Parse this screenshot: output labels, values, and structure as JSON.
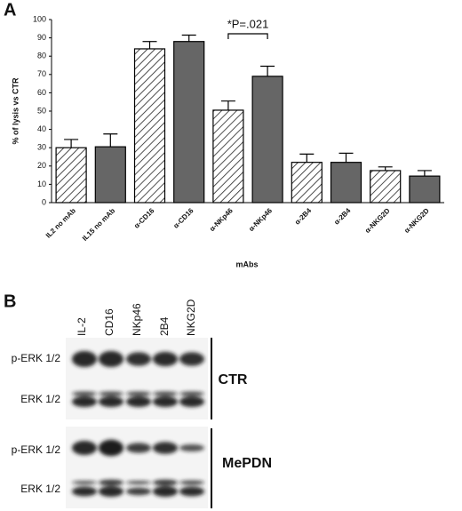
{
  "panel_labels": [
    "A",
    "B"
  ],
  "chart_data": {
    "type": "bar",
    "y_label": "% of lysis vs CTR",
    "x_label": "mAbs",
    "categories": [
      "IL2 no mAb",
      "IL15 no mAb",
      "α-CD16",
      "α-CD16",
      "α-NKp46",
      "α-NKp46",
      "α-2B4",
      "α-2B4",
      "α-NKG2D",
      "α-NKG2D"
    ],
    "values": [
      30,
      30.5,
      84,
      88,
      50.5,
      69,
      22,
      22,
      17.5,
      14.5
    ],
    "errors": [
      4.5,
      7,
      4,
      3.5,
      5,
      5.5,
      4.5,
      5,
      2,
      3
    ],
    "patterns": [
      "hatch",
      "solid",
      "hatch",
      "solid",
      "hatch",
      "solid",
      "hatch",
      "solid",
      "hatch",
      "solid"
    ],
    "color": "#666666",
    "annotation": "*P=.021",
    "ylim": [
      0,
      100
    ],
    "yticks": [
      0,
      10,
      20,
      30,
      40,
      50,
      60,
      70,
      80,
      90,
      100
    ]
  },
  "blot": {
    "lanes": [
      "IL-2",
      "CD16",
      "NKp46",
      "2B4",
      "NKG2D"
    ],
    "rows": [
      "p-ERK 1/2",
      "ERK 1/2",
      "p-ERK 1/2",
      "ERK 1/2"
    ],
    "groups": [
      "CTR",
      "MePDN"
    ]
  }
}
